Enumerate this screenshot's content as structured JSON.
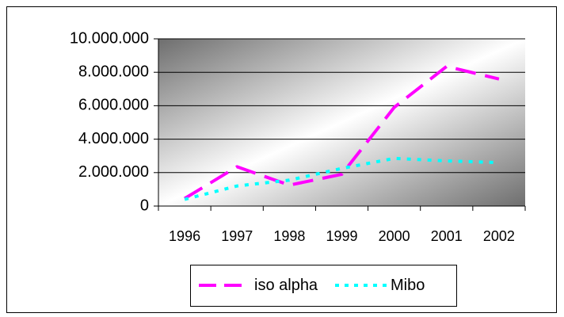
{
  "chart_data": {
    "type": "line",
    "categories": [
      "1996",
      "1997",
      "1998",
      "1999",
      "2000",
      "2001",
      "2002"
    ],
    "y_tick_labels": [
      "0",
      "2.000.000",
      "4.000.000",
      "6.000.000",
      "8.000.000",
      "10.000.000"
    ],
    "ylim": [
      0,
      10000000
    ],
    "grid": true,
    "legend_position": "bottom",
    "series": [
      {
        "name": "iso alpha",
        "color": "#ff00ff",
        "dash": "long-dash",
        "values": [
          450000,
          2350000,
          1250000,
          1900000,
          5900000,
          8350000,
          7600000
        ]
      },
      {
        "name": "Mibo",
        "color": "#00ffff",
        "dash": "dotted",
        "values": [
          400000,
          1200000,
          1550000,
          2250000,
          2850000,
          2700000,
          2600000
        ]
      }
    ]
  }
}
